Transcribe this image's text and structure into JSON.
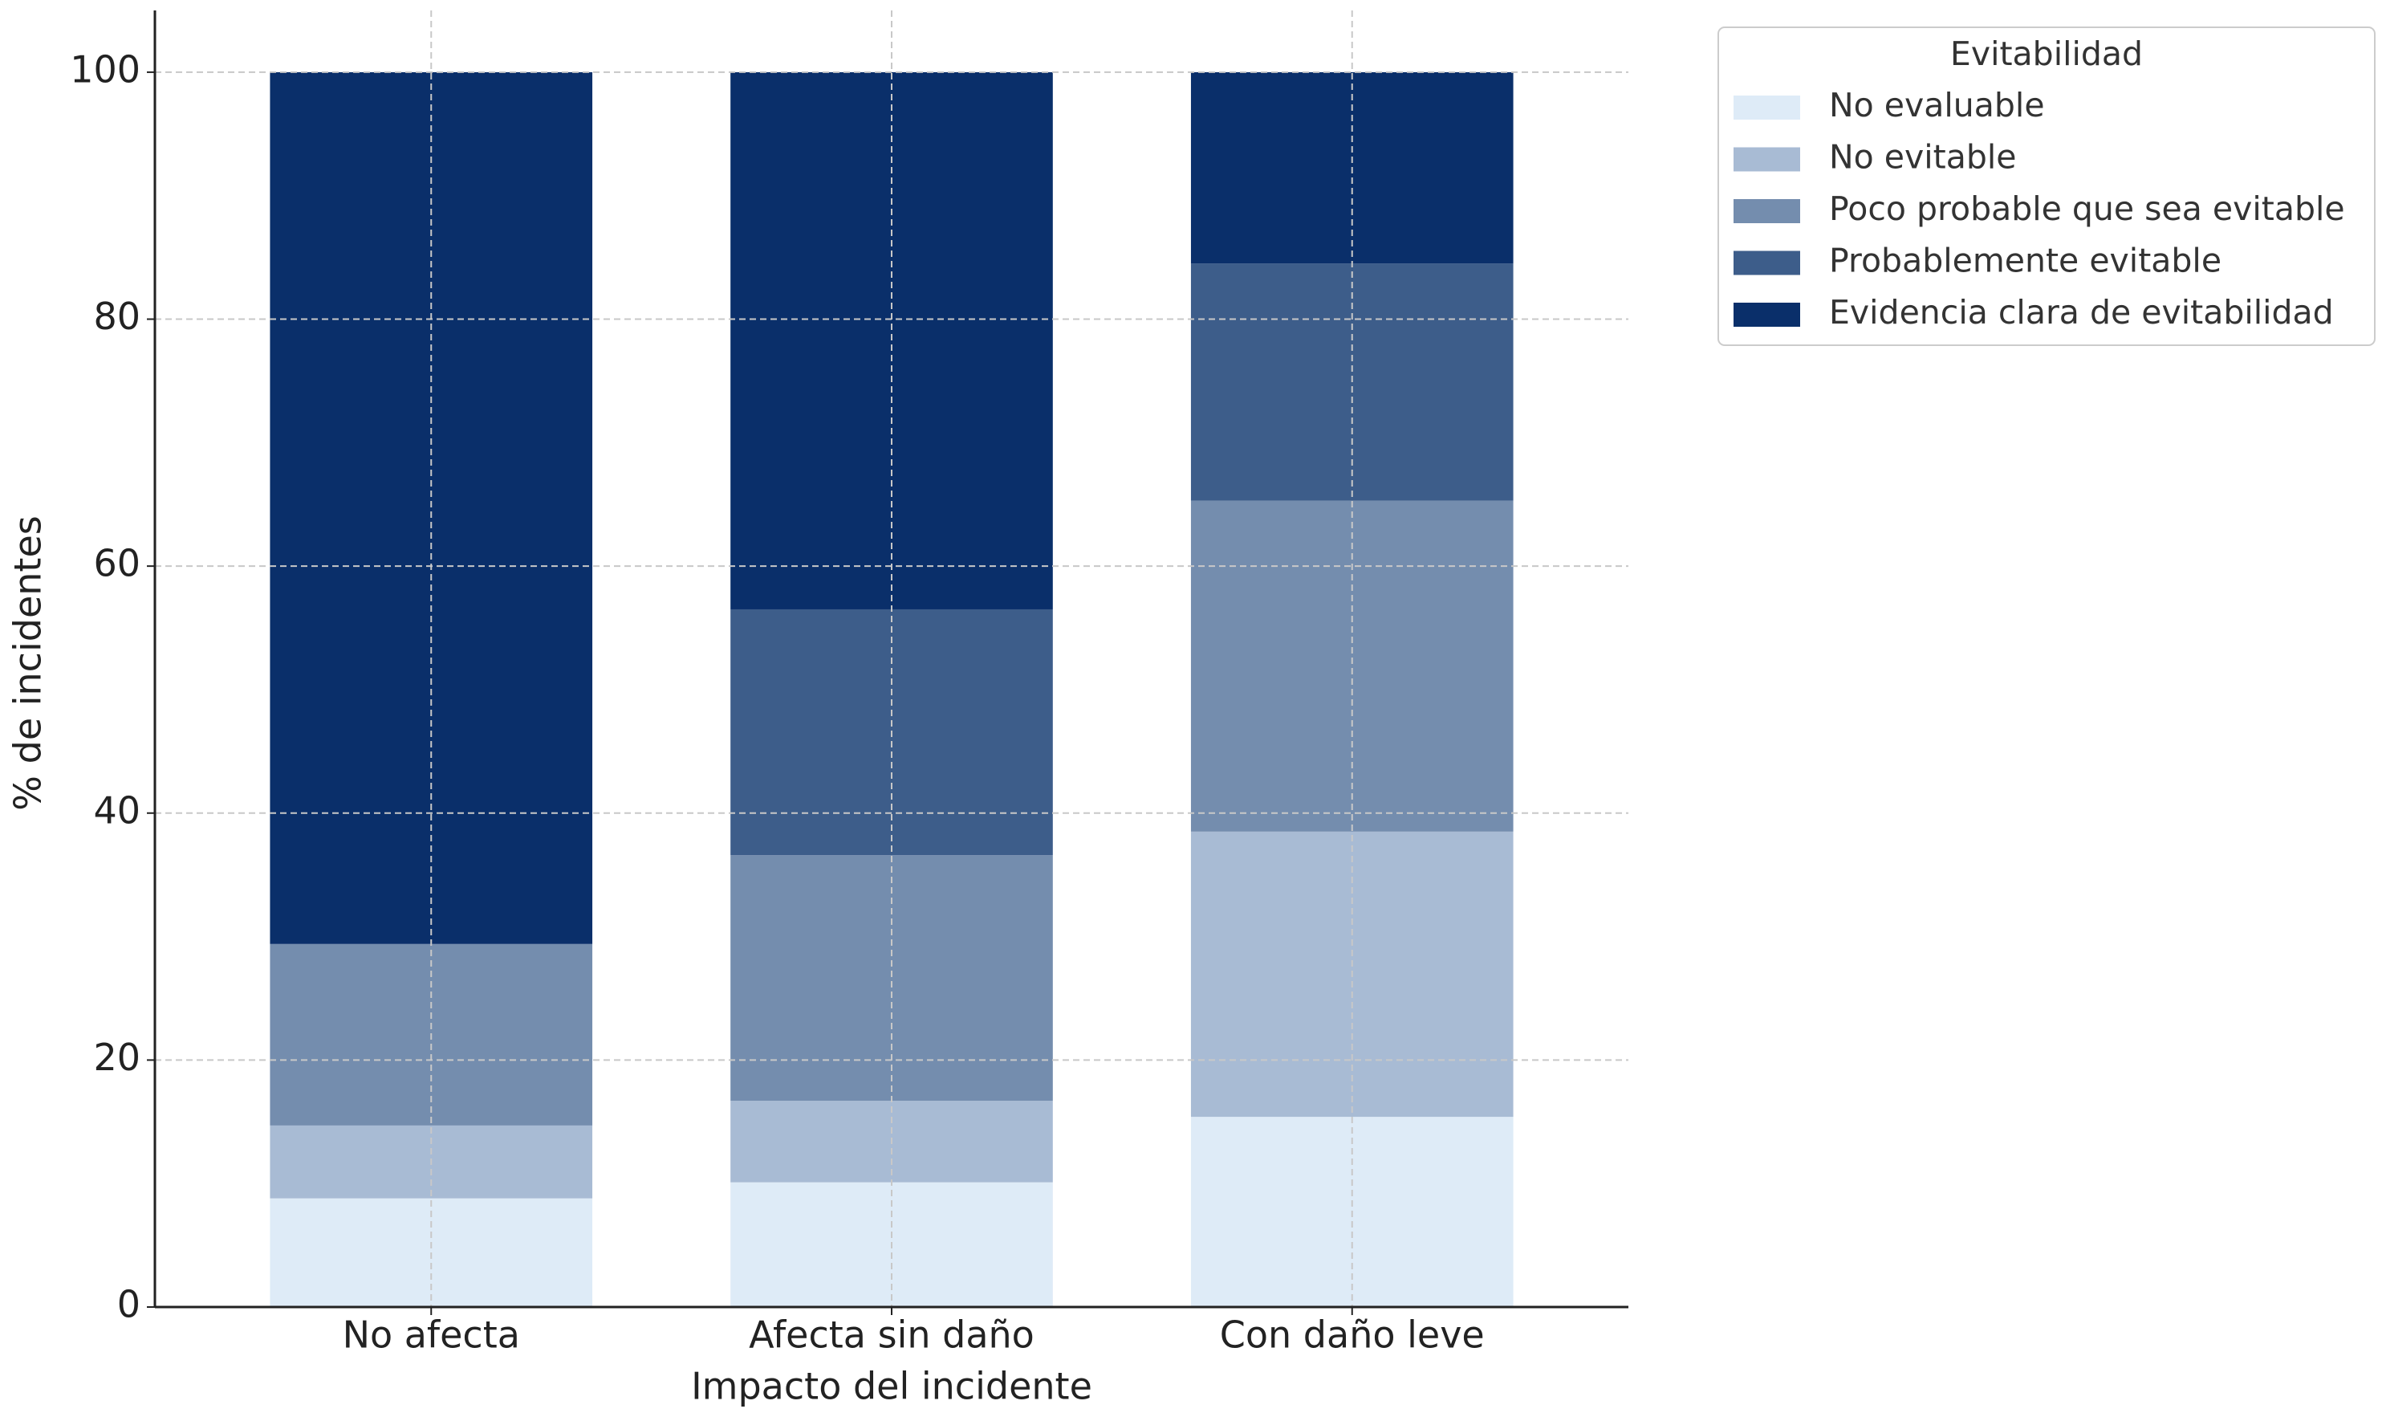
{
  "chart_data": {
    "type": "stacked_bar",
    "x_label": "Impacto del incidente",
    "y_label": "% de incidentes",
    "categories": [
      "No afecta",
      "Afecta sin daño",
      "Con daño leve"
    ],
    "series": [
      {
        "name": "No evaluable",
        "color": "#deebf7",
        "values": [
          8.8,
          10.1,
          15.4
        ]
      },
      {
        "name": "No evitable",
        "color": "#a8bbd4",
        "values": [
          5.9,
          6.6,
          23.1
        ]
      },
      {
        "name": "Poco probable que sea evitable",
        "color": "#748dae",
        "values": [
          14.7,
          19.9,
          26.8
        ]
      },
      {
        "name": "Probablemente evitable",
        "color": "#3d5d8a",
        "values": [
          0,
          19.9,
          19.2
        ]
      },
      {
        "name": "Evidencia clara de evitabilidad",
        "color": "#0a2f6a",
        "values": [
          70.6,
          43.5,
          15.5
        ]
      }
    ],
    "legend_title": "Evitabilidad",
    "legend_position": "upper right outside",
    "ylim": [
      0,
      105
    ],
    "yticks": [
      0,
      20,
      40,
      60,
      80,
      100
    ],
    "grid": true
  }
}
